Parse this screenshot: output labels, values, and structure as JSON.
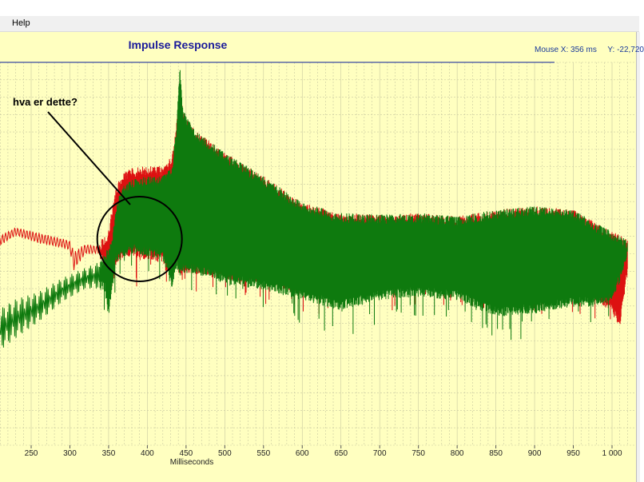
{
  "menu": {
    "items": [
      {
        "label": "Help"
      }
    ]
  },
  "colors": {
    "plot_background": "#ffffc0",
    "grid": "#c8c8a0",
    "trace_red": "#dd1111",
    "trace_green": "#0e7a0e",
    "title_color": "#1a1a9a",
    "readout_color": "#1a3a9a"
  },
  "mouse_readout": {
    "x_label": "Mouse X:",
    "x_value": "356 ms",
    "y_label": "Y:",
    "y_value": "-22,720"
  },
  "annotation": {
    "text": "hva er dette?",
    "circle_center_ms": 390,
    "arrow_from": "top-left text",
    "arrow_to": "circle"
  },
  "chart_data": {
    "type": "line",
    "title": "Impulse Response",
    "xlabel": "Milliseconds",
    "ylabel": "",
    "xlim": [
      208,
      1022
    ],
    "ylim": [
      -100,
      100
    ],
    "x_ticks": [
      250,
      300,
      350,
      400,
      450,
      500,
      550,
      600,
      650,
      700,
      750,
      800,
      850,
      900,
      950,
      1000
    ],
    "x_tick_labels": [
      "250",
      "300",
      "350",
      "400",
      "450",
      "500",
      "550",
      "600",
      "650",
      "700",
      "750",
      "800",
      "850",
      "900",
      "950",
      "1 000"
    ],
    "grid": true,
    "x_grid_step": 10,
    "y_grid_lines": 22,
    "y_tick_labels": [],
    "legend": "none",
    "series": [
      {
        "color": "#dd1111",
        "x": [
          208,
          230,
          260,
          290,
          300,
          305,
          320,
          340,
          348,
          352,
          360,
          370,
          380,
          400,
          420,
          432,
          438,
          442,
          446,
          460,
          500,
          550,
          600,
          650,
          700,
          750,
          800,
          850,
          900,
          950,
          980,
          1000,
          1010,
          1020
        ],
        "upper": [
          8,
          12,
          10,
          6,
          5,
          4,
          3,
          0,
          3,
          12,
          33,
          40,
          43,
          44,
          44,
          50,
          70,
          96,
          76,
          66,
          52,
          38,
          22,
          16,
          15,
          16,
          14,
          18,
          20,
          18,
          10,
          5,
          3,
          0
        ],
        "lower": [
          -10,
          -2,
          -8,
          -10,
          -12,
          -29,
          -14,
          -12,
          -20,
          -35,
          -16,
          -10,
          -10,
          -12,
          -14,
          -24,
          -14,
          -24,
          -20,
          -20,
          -24,
          -26,
          -34,
          -30,
          -28,
          -28,
          -28,
          -30,
          -30,
          -32,
          -36,
          -44,
          -52,
          -20
        ]
      },
      {
        "color": "#0e7a0e",
        "x": [
          208,
          230,
          260,
          290,
          320,
          340,
          345,
          350,
          355,
          360,
          370,
          380,
          400,
          420,
          432,
          438,
          442,
          446,
          460,
          500,
          550,
          600,
          650,
          700,
          750,
          800,
          850,
          900,
          950,
          980,
          1000,
          1010,
          1020
        ],
        "upper": [
          -40,
          -34,
          -30,
          -22,
          -16,
          -12,
          -8,
          -4,
          3,
          22,
          33,
          36,
          38,
          38,
          44,
          70,
          104,
          78,
          66,
          52,
          38,
          22,
          16,
          15,
          16,
          14,
          18,
          20,
          18,
          10,
          5,
          3,
          0
        ],
        "lower": [
          -68,
          -60,
          -50,
          -38,
          -30,
          -30,
          -30,
          -46,
          -28,
          -14,
          -10,
          -8,
          -10,
          -12,
          -30,
          -16,
          -24,
          -20,
          -20,
          -26,
          -30,
          -36,
          -42,
          -36,
          -34,
          -36,
          -46,
          -44,
          -40,
          -40,
          -36,
          -26,
          -10
        ]
      }
    ]
  }
}
